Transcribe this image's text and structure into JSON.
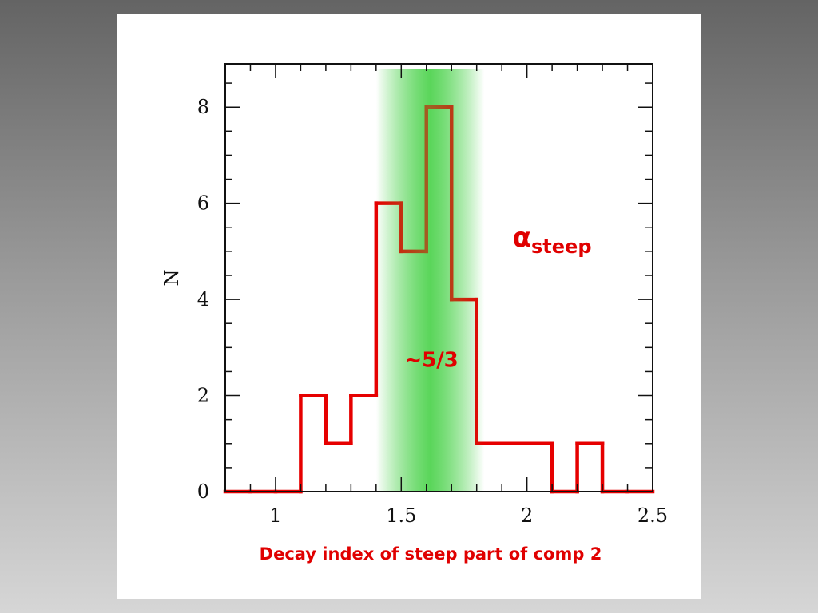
{
  "chart_data": {
    "type": "histogram",
    "title": "",
    "xlabel": "Decay index of steep part of comp 2",
    "ylabel": "N",
    "xlim": [
      0.8,
      2.5
    ],
    "ylim": [
      0,
      9
    ],
    "xticks": [
      1,
      1.5,
      2,
      2.5
    ],
    "xtick_labels": [
      "1",
      "1.5",
      "2",
      "2.5"
    ],
    "yticks": [
      0,
      2,
      4,
      6,
      8
    ],
    "ytick_labels": [
      "0",
      "2",
      "4",
      "6",
      "8"
    ],
    "bin_edges": [
      0.8,
      0.9,
      1.0,
      1.1,
      1.2,
      1.3,
      1.4,
      1.5,
      1.6,
      1.7,
      1.8,
      1.9,
      2.0,
      2.1,
      2.2,
      2.3,
      2.4,
      2.5
    ],
    "counts": [
      0,
      0,
      0,
      2,
      1,
      2,
      6,
      5,
      8,
      4,
      1,
      1,
      1,
      0,
      1,
      0,
      0
    ],
    "highlight_band": {
      "center": 1.6667,
      "range": [
        1.4,
        1.83
      ],
      "color": "#4cd24c"
    },
    "line_color": "#e60000",
    "grid": false,
    "annotations": [
      {
        "text": "~5/3",
        "x": 1.62,
        "y": 2.6
      },
      {
        "alpha": "α",
        "subscript": "steep",
        "x": 2.0,
        "y": 5.1
      }
    ]
  }
}
